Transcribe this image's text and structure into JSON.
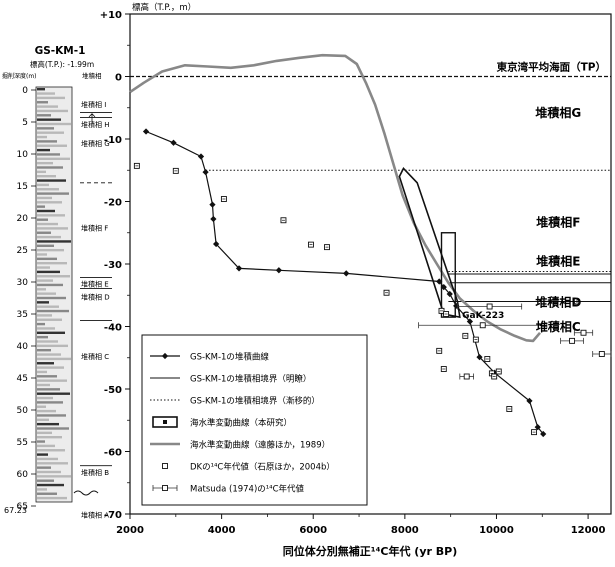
{
  "core": {
    "name": "GS-KM-1",
    "elevation": "標高(T.P.): -1.99m",
    "depth_header": "掘削深度(m)",
    "facies_header": "堆積相",
    "bottom_depth": "67.23",
    "depth_ticks": [
      0,
      5,
      10,
      15,
      20,
      25,
      30,
      35,
      40,
      45,
      50,
      55,
      60,
      65
    ],
    "facies": [
      {
        "label": "堆積相 I",
        "depth": 2.2
      },
      {
        "label": "堆積相 H",
        "depth": 5.3
      },
      {
        "label": "堆積相 G",
        "depth": 8.3
      },
      {
        "label": "堆積相 F",
        "depth": 21.5
      },
      {
        "label": "堆積相 E",
        "depth": 30.2
      },
      {
        "label": "堆積相 D",
        "depth": 32.3
      },
      {
        "label": "堆積相 C",
        "depth": 41.6
      },
      {
        "label": "堆積相 B",
        "depth": 59.7
      },
      {
        "label": "堆積相 A",
        "depth": 66.3
      }
    ],
    "boundaries": [
      {
        "depth": 3.5,
        "style": "solid"
      },
      {
        "depth": 4.3,
        "style": "solid"
      },
      {
        "depth": 14.5,
        "style": "dashed"
      },
      {
        "depth": 29.3,
        "style": "solid"
      },
      {
        "depth": 31.0,
        "style": "solid"
      },
      {
        "depth": 36.0,
        "style": "solid"
      },
      {
        "depth": 58.7,
        "style": "solid"
      }
    ]
  },
  "chart_data": {
    "type": "scatter",
    "xlabel": "同位体分別無補正¹⁴C年代 (yr BP)",
    "ylabel": "標高（T.P.，m）",
    "xlim": [
      2000,
      12500
    ],
    "ylim": [
      -70,
      10
    ],
    "x_ticks": [
      2000,
      4000,
      6000,
      8000,
      10000,
      12000
    ],
    "y_ticks": [
      10,
      0,
      -10,
      -20,
      -30,
      -40,
      -50,
      -60,
      -70
    ],
    "y_tick_labels": [
      "+10",
      "0",
      "-10",
      "-20",
      "-30",
      "-40",
      "-50",
      "-60",
      "-70"
    ],
    "tp_label": "東京湾平均海面（TP）",
    "facies_labels": [
      {
        "text": "堆積相G",
        "x": 11350,
        "y": -6.5
      },
      {
        "text": "堆積相F",
        "x": 11350,
        "y": -24
      },
      {
        "text": "堆積相E",
        "x": 11350,
        "y": -30.2
      },
      {
        "text": "堆積相D",
        "x": 11350,
        "y": -36.8
      },
      {
        "text": "堆積相C",
        "x": 11350,
        "y": -40.7
      }
    ],
    "gak_label": {
      "text": "GaK-223",
      "x": 9250,
      "y": -38.6
    },
    "boundaries": [
      {
        "y": -15,
        "style": "dotted",
        "x_from": 3650
      },
      {
        "y": -31.2,
        "style": "dotted",
        "x_from": 8950
      },
      {
        "y": -31.6,
        "style": "solid",
        "x_from": 8950
      },
      {
        "y": -33,
        "style": "solid",
        "x_from": 8950
      },
      {
        "y": -36,
        "style": "solid",
        "x_from": 8950
      }
    ],
    "series": [
      {
        "name": "GS-KM-1の堆積曲線",
        "kind": "line-markers",
        "x": [
          2350,
          2950,
          3550,
          3650,
          3800,
          3820,
          3880,
          4380,
          5250,
          6720,
          8750,
          8850,
          8980,
          9120,
          9420,
          9630,
          9960,
          10720,
          10900,
          11020
        ],
        "y": [
          -8.8,
          -10.6,
          -12.8,
          -15.3,
          -20.5,
          -22.8,
          -26.8,
          -30.7,
          -31.0,
          -31.5,
          -32.8,
          -33.7,
          -34.8,
          -36.7,
          -39.2,
          -44.9,
          -47.4,
          -51.9,
          -56.1,
          -57.2
        ]
      },
      {
        "name": "海水準変動曲線（遠藤ほか，1989）",
        "kind": "line",
        "x": [
          2000,
          2300,
          2700,
          3200,
          3700,
          4200,
          4700,
          5200,
          5700,
          6200,
          6700,
          6950,
          7150,
          7350,
          7550,
          7750,
          7950,
          8200,
          8450,
          8700,
          8950,
          9200,
          9500,
          9800,
          10100,
          10400,
          10650,
          10800,
          10950
        ],
        "y": [
          -2.5,
          -1.0,
          0.8,
          1.8,
          1.6,
          1.4,
          1.8,
          2.5,
          3.0,
          3.4,
          3.3,
          2.0,
          -1.0,
          -4.5,
          -9.0,
          -14.0,
          -19.0,
          -23.5,
          -27.0,
          -30.0,
          -33.0,
          -35.5,
          -37.5,
          -39.2,
          -40.5,
          -41.5,
          -42.2,
          -42.3,
          -41.0
        ]
      },
      {
        "name": "DKの¹⁴C年代値（石原ほか，2004b）",
        "kind": "points",
        "x": [
          2150,
          3000,
          4050,
          5350,
          5950,
          6300,
          7600,
          8750,
          8800,
          8850,
          8900,
          9320,
          9550,
          9800,
          9900,
          9950,
          10050,
          10280,
          10820
        ],
        "y": [
          -14.3,
          -15.1,
          -19.6,
          -23.0,
          -26.9,
          -27.3,
          -34.6,
          -43.9,
          -37.5,
          -46.8,
          -38.0,
          -41.5,
          -42.1,
          -45.2,
          -47.5,
          -48.0,
          -47.2,
          -53.2,
          -56.9
        ]
      },
      {
        "name": "Matsuda (1974)の¹⁴C年代値",
        "kind": "errorbars",
        "x": [
          9850,
          9700,
          11900,
          11650,
          12300,
          9350
        ],
        "y": [
          -36.8,
          -39.8,
          -41.0,
          -42.3,
          -44.4,
          -48.0
        ],
        "err": [
          700,
          1400,
          200,
          250,
          200,
          150
        ]
      }
    ],
    "sea_level_box": {
      "name": "海水準変動曲線（本研究）",
      "polygon_x": [
        7970,
        8270,
        9150,
        9200,
        8850,
        7880
      ],
      "polygon_y": [
        -14.7,
        -17.0,
        -36.0,
        -38.5,
        -38.0,
        -16.0
      ],
      "box_x": [
        8800,
        9100
      ],
      "box_y": [
        -25,
        -38.5
      ]
    },
    "legend": {
      "placement": "lower-left",
      "entries": [
        {
          "label": "GS-KM-1の堆積曲線",
          "symbol": "line-marker"
        },
        {
          "label": "GS-KM-1の堆積相境界（明瞭）",
          "symbol": "line-solid"
        },
        {
          "label": "GS-KM-1の堆積相境界（漸移的）",
          "symbol": "line-dotted"
        },
        {
          "label": "海水準変動曲線（本研究）",
          "symbol": "box"
        },
        {
          "label": "海水準変動曲線（遠藤ほか，1989）",
          "symbol": "line-gray"
        },
        {
          "label": "DKの¹⁴C年代値（石原ほか，2004b）",
          "symbol": "square-open"
        },
        {
          "label": "Matsuda (1974)の¹⁴C年代値",
          "symbol": "errorbar"
        }
      ]
    }
  }
}
